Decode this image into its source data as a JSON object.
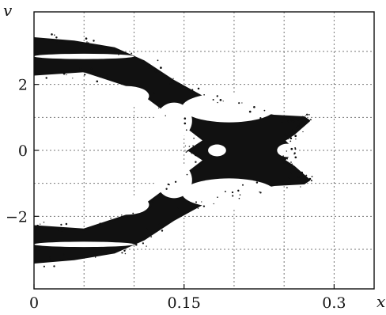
{
  "chart_data": {
    "type": "scatter",
    "title": "",
    "xlabel": "x",
    "ylabel": "v",
    "xlim": [
      0,
      0.34
    ],
    "ylim": [
      -4.2,
      4.2
    ],
    "x_ticks": [
      {
        "value": 0,
        "label": "0"
      },
      {
        "value": 0.15,
        "label": "0.15"
      },
      {
        "value": 0.3,
        "label": "0.3"
      }
    ],
    "y_ticks": [
      {
        "value": 2,
        "label": "2"
      },
      {
        "value": 0,
        "label": "0"
      },
      {
        "value": -2,
        "label": "−2"
      }
    ],
    "x_gridlines": [
      0.05,
      0.1,
      0.15,
      0.2,
      0.25,
      0.3
    ],
    "y_gridlines": [
      -3,
      -2,
      -1,
      0,
      1,
      2,
      3
    ],
    "grid": true,
    "grid_style": "dotted",
    "legend": "none",
    "colors": {
      "points": "#111111",
      "hole": "#ffffff",
      "frame": "#111111",
      "grid": "#777777"
    },
    "series": [
      {
        "kind": "dense-point-cloud",
        "description": "phase-space point cloud symmetric about v=0",
        "outline": [
          [
            0.0,
            3.4
          ],
          [
            0.04,
            3.3
          ],
          [
            0.08,
            3.1
          ],
          [
            0.11,
            2.7
          ],
          [
            0.14,
            2.1
          ],
          [
            0.17,
            1.6
          ],
          [
            0.2,
            1.3
          ],
          [
            0.24,
            1.05
          ],
          [
            0.27,
            1.0
          ],
          [
            0.275,
            0.9
          ],
          [
            0.26,
            0.5
          ],
          [
            0.25,
            0.3
          ],
          [
            0.26,
            0.0
          ],
          [
            0.25,
            -0.3
          ],
          [
            0.26,
            -0.5
          ],
          [
            0.275,
            -0.9
          ],
          [
            0.27,
            -1.0
          ],
          [
            0.24,
            -1.05
          ],
          [
            0.2,
            -1.3
          ],
          [
            0.17,
            -1.6
          ],
          [
            0.14,
            -2.1
          ],
          [
            0.11,
            -2.7
          ],
          [
            0.08,
            -3.1
          ],
          [
            0.04,
            -3.3
          ],
          [
            0.0,
            -3.4
          ],
          [
            0.0,
            -2.3
          ],
          [
            0.05,
            -2.4
          ],
          [
            0.1,
            -1.9
          ],
          [
            0.14,
            -1.0
          ],
          [
            0.17,
            -0.3
          ],
          [
            0.155,
            0.0
          ],
          [
            0.17,
            0.3
          ],
          [
            0.14,
            1.0
          ],
          [
            0.1,
            1.9
          ],
          [
            0.05,
            2.4
          ],
          [
            0.0,
            2.3
          ]
        ],
        "holes": [
          {
            "cx": 0.195,
            "cy": 1.3,
            "rx": 0.047,
            "ry": 0.45
          },
          {
            "cx": 0.195,
            "cy": -1.3,
            "rx": 0.047,
            "ry": 0.45
          },
          {
            "cx": 0.093,
            "cy": 1.65,
            "rx": 0.022,
            "ry": 0.3
          },
          {
            "cx": 0.093,
            "cy": -1.65,
            "rx": 0.022,
            "ry": 0.3
          },
          {
            "cx": 0.14,
            "cy": 0.9,
            "rx": 0.018,
            "ry": 0.55
          },
          {
            "cx": 0.14,
            "cy": -0.9,
            "rx": 0.018,
            "ry": 0.55
          },
          {
            "cx": 0.183,
            "cy": 0.0,
            "rx": 0.009,
            "ry": 0.18
          },
          {
            "cx": 0.253,
            "cy": 0.0,
            "rx": 0.01,
            "ry": 0.2
          },
          {
            "cx": 0.05,
            "cy": 2.85,
            "rx": 0.05,
            "ry": 0.08
          },
          {
            "cx": 0.05,
            "cy": -2.85,
            "rx": 0.05,
            "ry": 0.08
          }
        ]
      }
    ]
  }
}
